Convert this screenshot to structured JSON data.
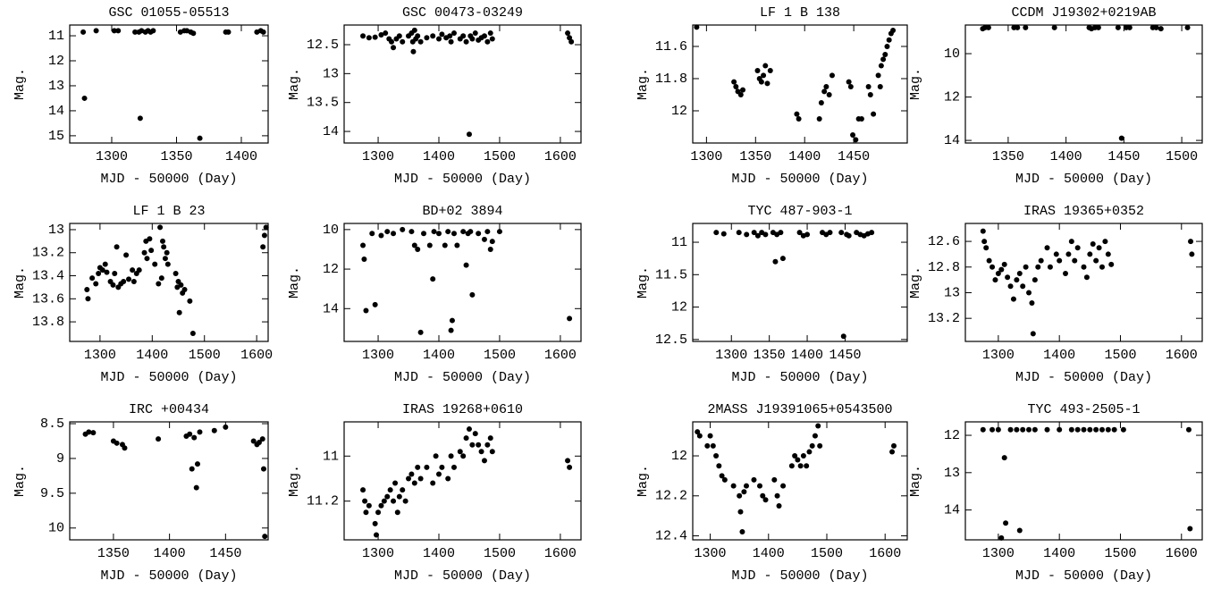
{
  "chart_data": [
    {
      "type": "scatter",
      "title": "GSC 01055-05513",
      "xlabel": "MJD - 50000 (Day)",
      "ylabel": "Mag.",
      "color": "#000000",
      "xlim": [
        1267.6,
        1420.7
      ],
      "ylim": [
        15.29,
        10.57
      ],
      "xticks": [
        1300,
        1350,
        1400
      ],
      "yticks": [
        11,
        12,
        13,
        14,
        15
      ],
      "x": [
        1278,
        1279,
        1288,
        1302,
        1305,
        1318,
        1321,
        1322,
        1323,
        1326,
        1328,
        1330,
        1332,
        1353,
        1356,
        1358,
        1361,
        1363,
        1368,
        1388,
        1390,
        1412,
        1415,
        1417
      ],
      "values": [
        10.85,
        13.5,
        10.8,
        10.8,
        10.8,
        10.85,
        10.85,
        14.3,
        10.8,
        10.85,
        10.8,
        10.85,
        10.8,
        10.85,
        10.8,
        10.8,
        10.85,
        10.9,
        15.1,
        10.85,
        10.85,
        10.85,
        10.8,
        10.85
      ]
    },
    {
      "type": "scatter",
      "title": "GSC 00473-03249",
      "xlabel": "MJD - 50000 (Day)",
      "ylabel": "Mag.",
      "color": "#000000",
      "xlim": [
        1244,
        1634
      ],
      "ylim": [
        14.2,
        12.16
      ],
      "xticks": [
        1300,
        1400,
        1500,
        1600
      ],
      "yticks": [
        12.5,
        13,
        13.5,
        14
      ],
      "x": [
        1275,
        1285,
        1295,
        1305,
        1312,
        1318,
        1322,
        1325,
        1330,
        1335,
        1340,
        1350,
        1355,
        1357,
        1358,
        1360,
        1362,
        1365,
        1370,
        1380,
        1390,
        1400,
        1405,
        1412,
        1418,
        1420,
        1425,
        1435,
        1440,
        1445,
        1450,
        1452,
        1455,
        1460,
        1465,
        1470,
        1475,
        1480,
        1485,
        1488,
        1612,
        1615,
        1618
      ],
      "values": [
        12.35,
        12.38,
        12.37,
        12.33,
        12.3,
        12.4,
        12.45,
        12.55,
        12.4,
        12.35,
        12.45,
        12.35,
        12.3,
        12.45,
        12.62,
        12.25,
        12.4,
        12.35,
        12.45,
        12.38,
        12.35,
        12.4,
        12.32,
        12.38,
        12.35,
        12.45,
        12.3,
        12.4,
        12.35,
        12.45,
        14.05,
        12.35,
        12.4,
        12.3,
        12.42,
        12.38,
        12.35,
        12.45,
        12.3,
        12.4,
        12.3,
        12.38,
        12.45
      ]
    },
    {
      "type": "scatter",
      "title": "LF  1 B 138",
      "xlabel": "MJD - 50000 (Day)",
      "ylabel": "Mag.",
      "color": "#000000",
      "xlim": [
        1286,
        1504.5
      ],
      "ylim": [
        12.2,
        11.467
      ],
      "xticks": [
        1300,
        1350,
        1400,
        1450
      ],
      "yticks": [
        11.6,
        11.8,
        12
      ],
      "x": [
        1290,
        1328,
        1330,
        1332,
        1335,
        1337,
        1352,
        1354,
        1356,
        1358,
        1360,
        1362,
        1365,
        1392,
        1394,
        1415,
        1417,
        1420,
        1422,
        1425,
        1428,
        1445,
        1447,
        1449,
        1452,
        1455,
        1458,
        1465,
        1467,
        1470,
        1475,
        1477,
        1478,
        1480,
        1482,
        1484,
        1486,
        1488,
        1490
      ],
      "values": [
        11.48,
        11.82,
        11.85,
        11.88,
        11.9,
        11.87,
        11.75,
        11.8,
        11.82,
        11.78,
        11.72,
        11.83,
        11.75,
        12.02,
        12.05,
        12.05,
        11.95,
        11.88,
        11.85,
        11.9,
        11.78,
        11.82,
        11.85,
        12.15,
        12.18,
        12.05,
        12.05,
        11.85,
        11.9,
        12.02,
        11.78,
        11.85,
        11.72,
        11.68,
        11.65,
        11.6,
        11.56,
        11.52,
        11.5
      ]
    },
    {
      "type": "scatter",
      "title": "CCDM J19302+0219AB",
      "xlabel": "MJD - 50000 (Day)",
      "ylabel": "Mag.",
      "color": "#000000",
      "xlim": [
        1313,
        1517.7
      ],
      "ylim": [
        14.12,
        8.68
      ],
      "xticks": [
        1350,
        1400,
        1450,
        1500
      ],
      "yticks": [
        10,
        12,
        14
      ],
      "x": [
        1328,
        1330,
        1333,
        1355,
        1358,
        1365,
        1390,
        1420,
        1422,
        1425,
        1428,
        1445,
        1448,
        1452,
        1455,
        1475,
        1478,
        1482,
        1505
      ],
      "values": [
        8.85,
        8.8,
        8.8,
        8.8,
        8.8,
        8.8,
        8.8,
        8.8,
        8.85,
        8.8,
        8.8,
        8.8,
        13.9,
        8.8,
        8.8,
        8.8,
        8.8,
        8.85,
        8.8
      ]
    },
    {
      "type": "scatter",
      "title": "LF  1 B  23",
      "xlabel": "MJD - 50000 (Day)",
      "ylabel": "Mag.",
      "color": "#000000",
      "xlim": [
        1242,
        1622
      ],
      "ylim": [
        13.97,
        12.946
      ],
      "xticks": [
        1300,
        1400,
        1500,
        1600
      ],
      "yticks": [
        13,
        13.2,
        13.4,
        13.6,
        13.8
      ],
      "x": [
        1275,
        1277,
        1285,
        1292,
        1297,
        1300,
        1305,
        1310,
        1313,
        1320,
        1325,
        1328,
        1332,
        1335,
        1340,
        1345,
        1350,
        1355,
        1362,
        1365,
        1370,
        1375,
        1385,
        1388,
        1390,
        1395,
        1398,
        1405,
        1412,
        1415,
        1418,
        1420,
        1422,
        1425,
        1428,
        1430,
        1445,
        1448,
        1450,
        1452,
        1455,
        1458,
        1462,
        1472,
        1478,
        1612,
        1615,
        1618
      ],
      "values": [
        13.52,
        13.6,
        13.42,
        13.47,
        13.38,
        13.33,
        13.35,
        13.3,
        13.37,
        13.45,
        13.48,
        13.38,
        13.15,
        13.5,
        13.47,
        13.45,
        13.22,
        13.43,
        13.35,
        13.45,
        13.38,
        13.35,
        13.2,
        13.1,
        13.25,
        13.08,
        13.18,
        13.3,
        13.47,
        12.98,
        13.42,
        13.1,
        13.15,
        13.25,
        13.2,
        13.3,
        13.38,
        13.5,
        13.45,
        13.72,
        13.48,
        13.55,
        13.52,
        13.62,
        13.9,
        13.15,
        13.05,
        12.98
      ]
    },
    {
      "type": "scatter",
      "title": "BD+02  3894",
      "xlabel": "MJD - 50000 (Day)",
      "ylabel": "Mag.",
      "color": "#000000",
      "xlim": [
        1244,
        1634
      ],
      "ylim": [
        15.66,
        9.69
      ],
      "xticks": [
        1300,
        1400,
        1500,
        1600
      ],
      "yticks": [
        10,
        12,
        14
      ],
      "x": [
        1275,
        1277,
        1280,
        1290,
        1295,
        1305,
        1315,
        1325,
        1340,
        1355,
        1360,
        1365,
        1370,
        1375,
        1385,
        1390,
        1392,
        1400,
        1410,
        1415,
        1420,
        1422,
        1425,
        1430,
        1440,
        1445,
        1448,
        1452,
        1455,
        1465,
        1475,
        1480,
        1485,
        1488,
        1500,
        1615
      ],
      "values": [
        10.8,
        11.5,
        14.1,
        10.2,
        13.8,
        10.3,
        10.1,
        10.2,
        10.0,
        10.1,
        10.8,
        11,
        15.2,
        10.2,
        10.8,
        12.5,
        10.1,
        10.2,
        10.8,
        10.1,
        15.1,
        14.6,
        10.2,
        10.8,
        10.1,
        11.8,
        10.2,
        10.1,
        13.3,
        10.2,
        10.5,
        10.1,
        11,
        10.6,
        10.1,
        14.5
      ]
    },
    {
      "type": "scatter",
      "title": "TYC  487-903-1",
      "xlabel": "MJD - 50000 (Day)",
      "ylabel": "Mag.",
      "color": "#000000",
      "xlim": [
        1249,
        1532
      ],
      "ylim": [
        12.53,
        10.71
      ],
      "xticks": [
        1300,
        1350,
        1400,
        1450
      ],
      "yticks": [
        11,
        11.5,
        12,
        12.5
      ],
      "x": [
        1280,
        1290,
        1310,
        1320,
        1330,
        1335,
        1340,
        1345,
        1355,
        1358,
        1360,
        1365,
        1368,
        1390,
        1395,
        1400,
        1420,
        1425,
        1430,
        1445,
        1448,
        1452,
        1455,
        1465,
        1470,
        1475,
        1480,
        1485
      ],
      "values": [
        10.85,
        10.87,
        10.85,
        10.88,
        10.85,
        10.9,
        10.85,
        10.88,
        10.85,
        11.3,
        10.88,
        10.85,
        11.25,
        10.85,
        10.9,
        10.88,
        10.85,
        10.88,
        10.85,
        10.85,
        12.45,
        10.88,
        10.9,
        10.85,
        10.88,
        10.9,
        10.87,
        10.85
      ]
    },
    {
      "type": "scatter",
      "title": "IRAS 19365+0352",
      "xlabel": "MJD - 50000 (Day)",
      "ylabel": "Mag.",
      "color": "#000000",
      "xlim": [
        1246,
        1634
      ],
      "ylim": [
        13.38,
        12.46
      ],
      "xticks": [
        1300,
        1400,
        1500,
        1600
      ],
      "yticks": [
        12.6,
        12.8,
        13,
        13.2
      ],
      "x": [
        1275,
        1277,
        1280,
        1285,
        1290,
        1295,
        1300,
        1305,
        1310,
        1315,
        1320,
        1325,
        1330,
        1335,
        1340,
        1345,
        1350,
        1355,
        1357,
        1360,
        1365,
        1370,
        1380,
        1385,
        1395,
        1400,
        1410,
        1415,
        1420,
        1425,
        1430,
        1440,
        1445,
        1450,
        1455,
        1460,
        1465,
        1470,
        1475,
        1480,
        1485,
        1615,
        1617
      ],
      "values": [
        12.52,
        12.6,
        12.65,
        12.75,
        12.8,
        12.9,
        12.85,
        12.82,
        12.78,
        12.88,
        12.95,
        13.05,
        12.9,
        12.85,
        12.95,
        12.8,
        13.0,
        13.08,
        13.32,
        12.9,
        12.8,
        12.75,
        12.65,
        12.8,
        12.7,
        12.75,
        12.85,
        12.7,
        12.6,
        12.75,
        12.65,
        12.8,
        12.88,
        12.7,
        12.62,
        12.75,
        12.65,
        12.8,
        12.6,
        12.7,
        12.78,
        12.6,
        12.7
      ]
    },
    {
      "type": "scatter",
      "title": "IRC +00434",
      "xlabel": "MJD - 50000 (Day)",
      "ylabel": "Mag.",
      "color": "#000000",
      "xlim": [
        1311,
        1488
      ],
      "ylim": [
        10.17,
        8.474
      ],
      "xticks": [
        1350,
        1400,
        1450
      ],
      "yticks": [
        8.5,
        9,
        9.5,
        10
      ],
      "x": [
        1325,
        1328,
        1332,
        1350,
        1353,
        1358,
        1360,
        1390,
        1415,
        1418,
        1420,
        1422,
        1424,
        1425,
        1427,
        1440,
        1450,
        1475,
        1478,
        1480,
        1483,
        1484,
        1485
      ],
      "values": [
        8.65,
        8.62,
        8.63,
        8.75,
        8.78,
        8.8,
        8.85,
        8.72,
        8.68,
        8.65,
        9.15,
        8.7,
        9.42,
        9.08,
        8.62,
        8.6,
        8.55,
        8.75,
        8.8,
        8.77,
        8.72,
        9.15,
        10.12
      ]
    },
    {
      "type": "scatter",
      "title": "IRAS 19268+0610",
      "xlabel": "MJD - 50000 (Day)",
      "ylabel": "Mag.",
      "color": "#000000",
      "xlim": [
        1244,
        1634
      ],
      "ylim": [
        11.372,
        10.848
      ],
      "xticks": [
        1300,
        1400,
        1500,
        1600
      ],
      "yticks": [
        11,
        11.2
      ],
      "x": [
        1275,
        1278,
        1280,
        1285,
        1295,
        1297,
        1300,
        1305,
        1310,
        1315,
        1320,
        1325,
        1328,
        1332,
        1335,
        1340,
        1345,
        1350,
        1355,
        1360,
        1365,
        1370,
        1380,
        1390,
        1395,
        1400,
        1405,
        1415,
        1420,
        1425,
        1435,
        1440,
        1445,
        1450,
        1455,
        1460,
        1465,
        1470,
        1475,
        1480,
        1485,
        1488,
        1612,
        1615
      ],
      "values": [
        11.15,
        11.2,
        11.25,
        11.22,
        11.3,
        11.35,
        11.25,
        11.22,
        11.2,
        11.18,
        11.15,
        11.2,
        11.12,
        11.25,
        11.18,
        11.15,
        11.2,
        11.1,
        11.08,
        11.12,
        11.05,
        11.1,
        11.05,
        11.12,
        11.0,
        11.08,
        11.05,
        11.1,
        11.0,
        11.05,
        10.98,
        11.0,
        10.92,
        10.88,
        10.95,
        10.9,
        10.95,
        10.98,
        11.02,
        10.95,
        10.92,
        10.98,
        11.02,
        11.05
      ]
    },
    {
      "type": "scatter",
      "title": "2MASS J19391065+0543500",
      "xlabel": "MJD - 50000 (Day)",
      "ylabel": "Mag.",
      "color": "#000000",
      "xlim": [
        1270,
        1638
      ],
      "ylim": [
        12.42,
        11.83
      ],
      "xticks": [
        1300,
        1400,
        1500,
        1600
      ],
      "yticks": [
        12,
        12.2,
        12.4
      ],
      "x": [
        1278,
        1282,
        1295,
        1300,
        1305,
        1310,
        1315,
        1320,
        1325,
        1340,
        1350,
        1352,
        1355,
        1358,
        1362,
        1375,
        1385,
        1390,
        1395,
        1410,
        1415,
        1418,
        1425,
        1440,
        1445,
        1450,
        1455,
        1460,
        1465,
        1470,
        1475,
        1480,
        1485,
        1488,
        1612,
        1615
      ],
      "values": [
        11.88,
        11.9,
        11.95,
        11.9,
        11.95,
        12.0,
        12.05,
        12.1,
        12.12,
        12.15,
        12.2,
        12.28,
        12.38,
        12.18,
        12.15,
        12.12,
        12.15,
        12.2,
        12.22,
        12.12,
        12.2,
        12.25,
        12.15,
        12.05,
        12.0,
        12.02,
        12.05,
        12.0,
        12.05,
        11.98,
        11.95,
        11.9,
        11.85,
        11.95,
        11.98,
        11.95
      ]
    },
    {
      "type": "scatter",
      "title": "TYC  493-2505-1",
      "xlabel": "MJD - 50000 (Day)",
      "ylabel": "Mag.",
      "color": "#000000",
      "xlim": [
        1246,
        1634
      ],
      "ylim": [
        14.8,
        11.64
      ],
      "xticks": [
        1300,
        1400,
        1500,
        1600
      ],
      "yticks": [
        12,
        13,
        14
      ],
      "x": [
        1275,
        1290,
        1300,
        1305,
        1310,
        1312,
        1320,
        1330,
        1335,
        1340,
        1350,
        1360,
        1380,
        1400,
        1420,
        1430,
        1440,
        1450,
        1460,
        1470,
        1480,
        1490,
        1505,
        1612,
        1614
      ],
      "values": [
        11.85,
        11.85,
        11.85,
        14.75,
        12.6,
        14.35,
        11.85,
        11.85,
        14.55,
        11.85,
        11.85,
        11.85,
        11.85,
        11.85,
        11.85,
        11.85,
        11.85,
        11.85,
        11.85,
        11.85,
        11.85,
        11.85,
        11.85,
        11.85,
        14.5
      ]
    }
  ]
}
